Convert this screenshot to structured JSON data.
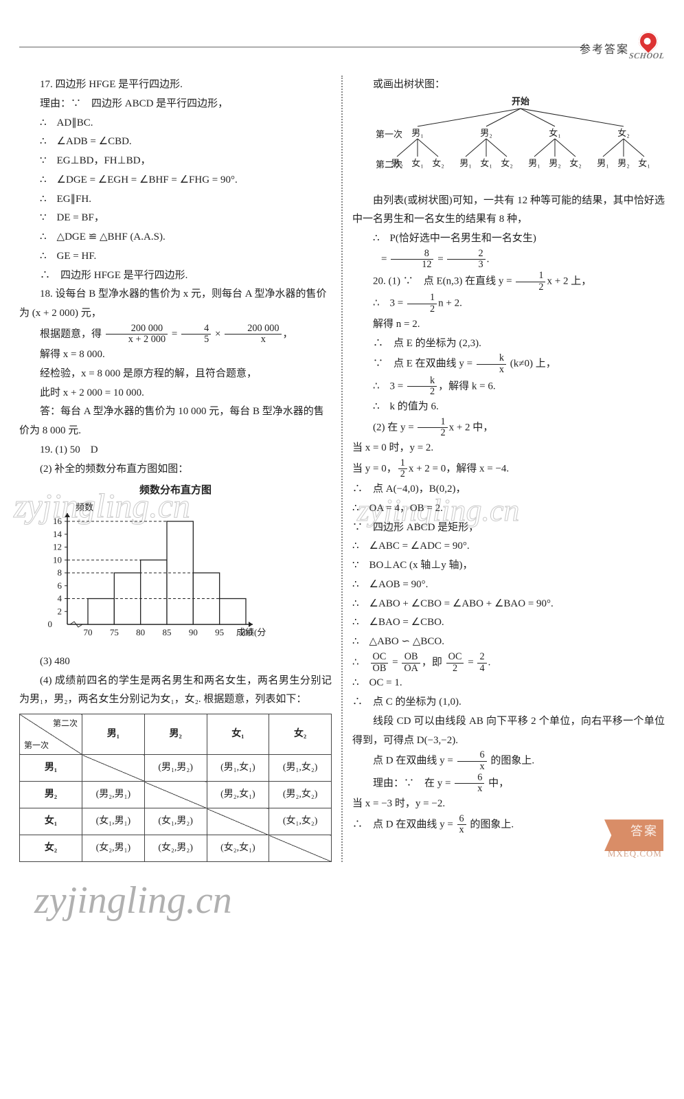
{
  "header": {
    "label": "参考答案",
    "badge": "SCHOOL"
  },
  "left": {
    "p17_title": "17. 四边形 HFGE 是平行四边形.",
    "p17_l1": "理由：∵　四边形 ABCD 是平行四边形，",
    "p17_l2": "∴　AD∥BC.",
    "p17_l3": "∴　∠ADB = ∠CBD.",
    "p17_l4": "∵　EG⊥BD，FH⊥BD，",
    "p17_l5": "∴　∠DGE = ∠EGH = ∠BHF = ∠FHG = 90°.",
    "p17_l6": "∴　EG∥FH.",
    "p17_l7": "∵　DE = BF，",
    "p17_l8": "∴　△DGE ≌ △BHF (A.A.S).",
    "p17_l9": "∴　GE = HF.",
    "p17_l10": "∴　四边形 HFGE 是平行四边形.",
    "p18_a": "18. 设每台 B 型净水器的售价为 x 元，则每台 A 型净水器的售价为 (x + 2 000) 元，",
    "p18_b_pre": "根据题意，得",
    "p18_c": "解得 x = 8 000.",
    "p18_d": "经检验，x = 8 000 是原方程的解，且符合题意，",
    "p18_e": "此时 x + 2 000 = 10 000.",
    "p18_f": "答：每台 A 型净水器的售价为 10 000 元，每台 B 型净水器的售价为 8 000 元.",
    "p19_1": "19. (1) 50　D",
    "p19_2": "(2) 补全的频数分布直方图如图：",
    "hist_title": "频数分布直方图",
    "hist_ylabel": "频数",
    "hist_xlabel": "成绩(分)",
    "hist": {
      "ticks": [
        0,
        2,
        4,
        6,
        8,
        10,
        12,
        14,
        16
      ],
      "edges": [
        70,
        75,
        80,
        85,
        90,
        95,
        100
      ],
      "values": [
        4,
        8,
        10,
        16,
        8,
        4
      ]
    },
    "p19_3": "(3) 480",
    "p19_4": "(4) 成绩前四名的学生是两名男生和两名女生，两名男生分别记为男₁，男₂，两名女生分别记为女₁，女₂. 根据题意，列表如下：",
    "table": {
      "corner_tl": "第二次",
      "corner_br": "第一次",
      "cols": [
        "男₁",
        "男₂",
        "女₁",
        "女₂"
      ],
      "rows": [
        {
          "h": "男₁",
          "cells": [
            "",
            "(男₁,男₂)",
            "(男₁,女₁)",
            "(男₁,女₂)"
          ]
        },
        {
          "h": "男₂",
          "cells": [
            "(男₂,男₁)",
            "",
            "(男₂,女₁)",
            "(男₂,女₂)"
          ]
        },
        {
          "h": "女₁",
          "cells": [
            "(女₁,男₁)",
            "(女₁,男₂)",
            "",
            "(女₁,女₂)"
          ]
        },
        {
          "h": "女₂",
          "cells": [
            "(女₂,男₁)",
            "(女₂,男₂)",
            "(女₂,女₁)",
            ""
          ]
        }
      ]
    }
  },
  "right": {
    "tree_title": "或画出树状图：",
    "tree": {
      "root": "开始",
      "l1_label": "第一次",
      "l2_label": "第二次",
      "l1": [
        "男₁",
        "男₂",
        "女₁",
        "女₂"
      ],
      "l2": [
        [
          "男₂",
          "女₁",
          "女₂"
        ],
        [
          "男₁",
          "女₁",
          "女₂"
        ],
        [
          "男₁",
          "男₂",
          "女₂"
        ],
        [
          "男₁",
          "男₂",
          "女₁"
        ]
      ]
    },
    "t1": "由列表(或树状图)可知，一共有 12 种等可能的结果，其中恰好选中一名男生和一名女生的结果有 8 种，",
    "t2": "∴　P(恰好选中一名男生和一名女生)",
    "p20_1a_pre": "20. (1) ∵　点 E(n,3) 在直线 y = ",
    "p20_1a_post": "x + 2 上，",
    "p20_1b_pre": "∴　3 = ",
    "p20_1b_post": "n + 2.",
    "p20_1c": "解得 n = 2.",
    "p20_1d": "∴　点 E 的坐标为 (2,3).",
    "p20_1e_pre": "∵　点 E 在双曲线 y = ",
    "p20_1e_post": " (k≠0) 上，",
    "p20_1f_pre": "∴　3 = ",
    "p20_1f_post": "，解得 k = 6.",
    "p20_1g": "∴　k 的值为 6.",
    "p20_2a_pre": "(2) 在 y = ",
    "p20_2a_post": "x + 2 中，",
    "p20_2b": "当 x = 0 时，y = 2.",
    "p20_2c_pre": "当 y = 0，",
    "p20_2c_post": "x + 2 = 0，解得 x = −4.",
    "p20_2d": "∴　点 A(−4,0)，B(0,2)，",
    "p20_2e": "∴　OA = 4，OB = 2.",
    "p20_2f": "∵　四边形 ABCD 是矩形，",
    "p20_2g": "∴　∠ABC = ∠ADC = 90°.",
    "p20_2h": "∵　BO⊥AC (x 轴⊥y 轴)，",
    "p20_2i": "∴　∠AOB = 90°.",
    "p20_2j": "∴　∠ABO + ∠CBO = ∠ABO + ∠BAO = 90°.",
    "p20_2k": "∴　∠BAO = ∠CBO.",
    "p20_2l": "∴　△ABO ∽ △BCO.",
    "p20_2m_post": ".",
    "p20_2n": "∴　OC = 1.",
    "p20_2o": "∴　点 C 的坐标为 (1,0).",
    "p20_2p": "线段 CD 可以由线段 AB 向下平移 2 个单位，向右平移一个单位得到，可得点 D(−3,−2).",
    "p20_2q_pre": "点 D 在双曲线 y = ",
    "p20_2q_post": " 的图象上.",
    "p20_2r_pre": "理由：∵　在 y = ",
    "p20_2r_post": " 中，",
    "p20_2s": "当 x = −3 时，y = −2.",
    "p20_2t_pre": "∴　点 D 在双曲线 y = ",
    "p20_2t_post": " 的图象上."
  },
  "watermarks": {
    "w1": "zyjingling.cn",
    "w2": "zyjingling.cn",
    "w3": "zyjingling.cn",
    "badge": "答案",
    "mxe": "MXEQ.COM"
  },
  "style": {
    "hist_bar_fill": "#ffffff",
    "hist_line": "#222222"
  }
}
